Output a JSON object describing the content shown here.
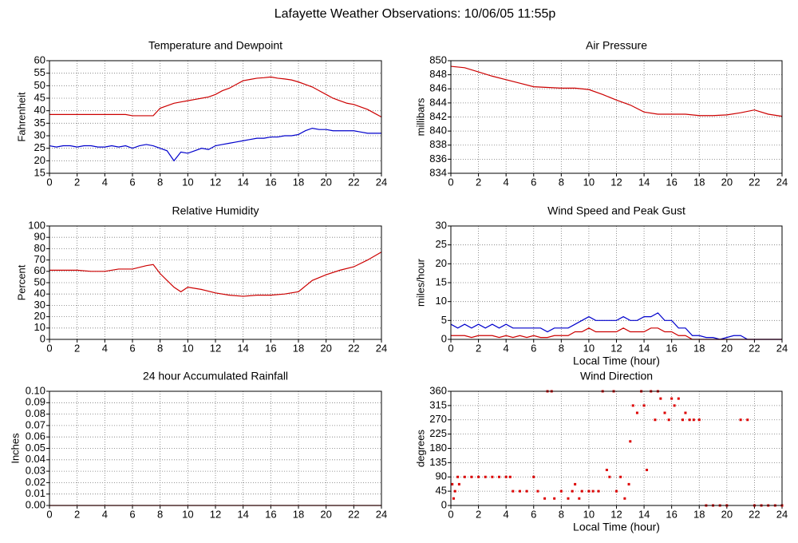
{
  "title": "Lafayette Weather Observations: 10/06/05 11:55p",
  "chart_data": [
    {
      "type": "line",
      "title": "Temperature and Dewpoint",
      "ylabel": "Fahrenheit",
      "x": [
        0,
        0.5,
        1,
        1.5,
        2,
        2.5,
        3,
        3.5,
        4,
        4.5,
        5,
        5.5,
        6,
        6.5,
        7,
        7.5,
        8,
        8.5,
        9,
        9.5,
        10,
        10.5,
        11,
        11.5,
        12,
        12.5,
        13,
        13.5,
        14,
        14.5,
        15,
        15.5,
        16,
        16.5,
        17,
        17.5,
        18,
        18.5,
        19,
        19.5,
        20,
        20.5,
        21,
        21.5,
        22,
        22.5,
        23,
        23.5,
        24
      ],
      "series": [
        {
          "color": "#cc0000",
          "values": [
            38.5,
            38.5,
            38.5,
            38.5,
            38.5,
            38.5,
            38.5,
            38.5,
            38.5,
            38.5,
            38.5,
            38.5,
            38,
            38,
            38,
            38,
            41,
            42,
            43,
            43.5,
            44,
            44.5,
            45,
            45.5,
            46.5,
            48,
            49,
            50.5,
            52,
            52.5,
            53,
            53.2,
            53.5,
            53,
            52.7,
            52.3,
            51.5,
            50.5,
            49.5,
            48,
            46.5,
            45,
            44,
            43,
            42.5,
            41.5,
            40.5,
            39,
            37.5
          ]
        },
        {
          "color": "#0000cc",
          "values": [
            26,
            25.5,
            26,
            26,
            25.5,
            26,
            26,
            25.5,
            25.5,
            26,
            25.5,
            26,
            25,
            26,
            26.5,
            26,
            25,
            24,
            20,
            23.5,
            23,
            24,
            25,
            24.5,
            26,
            26.5,
            27,
            27.5,
            28,
            28.5,
            29,
            29,
            29.5,
            29.5,
            30,
            30,
            30.5,
            32,
            33,
            32.5,
            32.5,
            32,
            32,
            32,
            32,
            31.5,
            31,
            31,
            31
          ]
        }
      ],
      "xlim": [
        0,
        24
      ],
      "xticks": [
        0,
        2,
        4,
        6,
        8,
        10,
        12,
        14,
        16,
        18,
        20,
        22,
        24
      ],
      "ylim": [
        15,
        60
      ],
      "yticks": [
        15,
        20,
        25,
        30,
        35,
        40,
        45,
        50,
        55,
        60
      ],
      "grid": true
    },
    {
      "type": "line",
      "title": "Air Pressure",
      "ylabel": "millibars",
      "x": [
        0,
        1,
        2,
        3,
        4,
        5,
        6,
        7,
        8,
        9,
        10,
        11,
        12,
        13,
        14,
        15,
        16,
        17,
        18,
        19,
        20,
        21,
        22,
        23,
        24
      ],
      "series": [
        {
          "color": "#cc0000",
          "values": [
            849.2,
            849,
            848.4,
            847.8,
            847.3,
            846.8,
            846.3,
            846.2,
            846.1,
            846.1,
            845.9,
            845.2,
            844.4,
            843.7,
            842.7,
            842.4,
            842.4,
            842.4,
            842.2,
            842.2,
            842.3,
            842.6,
            843,
            842.4,
            842.1
          ]
        }
      ],
      "xlim": [
        0,
        24
      ],
      "xticks": [
        0,
        2,
        4,
        6,
        8,
        10,
        12,
        14,
        16,
        18,
        20,
        22,
        24
      ],
      "ylim": [
        834,
        850
      ],
      "yticks": [
        834,
        836,
        838,
        840,
        842,
        844,
        846,
        848,
        850
      ],
      "grid": true
    },
    {
      "type": "line",
      "title": "Relative Humidity",
      "ylabel": "Percent",
      "x": [
        0,
        1,
        2,
        3,
        4,
        5,
        6,
        7,
        7.5,
        8,
        8.5,
        9,
        9.5,
        10,
        11,
        12,
        13,
        14,
        15,
        16,
        17,
        18,
        19,
        20,
        21,
        22,
        23,
        24
      ],
      "series": [
        {
          "color": "#cc0000",
          "values": [
            61,
            61,
            61,
            60,
            60,
            62,
            62,
            65,
            66,
            58,
            52,
            46,
            42,
            46,
            44,
            41,
            39,
            38,
            39,
            39,
            40,
            42,
            52,
            57,
            61,
            64,
            70,
            77
          ]
        }
      ],
      "xlim": [
        0,
        24
      ],
      "xticks": [
        0,
        2,
        4,
        6,
        8,
        10,
        12,
        14,
        16,
        18,
        20,
        22,
        24
      ],
      "ylim": [
        0,
        100
      ],
      "yticks": [
        0,
        10,
        20,
        30,
        40,
        50,
        60,
        70,
        80,
        90,
        100
      ],
      "grid": true
    },
    {
      "type": "line",
      "title": "Wind Speed and Peak Gust",
      "ylabel": "miles/hour",
      "xlabel": "Local Time (hour)",
      "x": [
        0,
        0.5,
        1,
        1.5,
        2,
        2.5,
        3,
        3.5,
        4,
        4.5,
        5,
        5.5,
        6,
        6.5,
        7,
        7.5,
        8,
        8.5,
        9,
        9.5,
        10,
        10.5,
        11,
        11.5,
        12,
        12.5,
        13,
        13.5,
        14,
        14.5,
        15,
        15.5,
        16,
        16.5,
        17,
        17.5,
        18,
        18.5,
        19,
        19.5,
        20,
        20.5,
        21,
        21.5,
        22,
        22.5,
        23,
        23.5,
        24
      ],
      "series": [
        {
          "color": "#0000cc",
          "values": [
            4,
            3,
            4,
            3,
            4,
            3,
            4,
            3,
            4,
            3,
            3,
            3,
            3,
            3,
            2,
            3,
            3,
            3,
            4,
            5,
            6,
            5,
            5,
            5,
            5,
            6,
            5,
            5,
            6,
            6,
            7,
            5,
            5,
            3,
            3,
            1,
            1,
            0.5,
            0.5,
            0,
            0.5,
            1,
            1,
            0,
            0,
            0,
            0,
            0,
            0
          ]
        },
        {
          "color": "#cc0000",
          "values": [
            1,
            1,
            1,
            0.5,
            1,
            1,
            1,
            0.5,
            1,
            0.5,
            1,
            0.5,
            1,
            0.5,
            0.5,
            1,
            1,
            1,
            2,
            2,
            3,
            2,
            2,
            2,
            2,
            3,
            2,
            2,
            2,
            3,
            3,
            2,
            2,
            1,
            1,
            0,
            0,
            0,
            0,
            0,
            0,
            0,
            0,
            0,
            0,
            0,
            0,
            0,
            0
          ]
        }
      ],
      "xlim": [
        0,
        24
      ],
      "xticks": [
        0,
        2,
        4,
        6,
        8,
        10,
        12,
        14,
        16,
        18,
        20,
        22,
        24
      ],
      "ylim": [
        0,
        30
      ],
      "yticks": [
        0,
        5,
        10,
        15,
        20,
        25,
        30
      ],
      "grid": true
    },
    {
      "type": "line",
      "title": "24 hour Accumulated Rainfall",
      "ylabel": "Inches",
      "x": [
        0,
        24
      ],
      "series": [
        {
          "color": "#cc0000",
          "values": [
            0,
            0
          ]
        }
      ],
      "xlim": [
        0,
        24
      ],
      "xticks": [
        0,
        2,
        4,
        6,
        8,
        10,
        12,
        14,
        16,
        18,
        20,
        22,
        24
      ],
      "ylim": [
        0,
        0.1
      ],
      "yticks": [
        {
          "value": 0,
          "label": "0.00"
        },
        {
          "value": 0.01,
          "label": "0.01"
        },
        {
          "value": 0.02,
          "label": "0.02"
        },
        {
          "value": 0.03,
          "label": "0.03"
        },
        {
          "value": 0.04,
          "label": "0.04"
        },
        {
          "value": 0.05,
          "label": "0.05"
        },
        {
          "value": 0.06,
          "label": "0.06"
        },
        {
          "value": 0.07,
          "label": "0.07"
        },
        {
          "value": 0.08,
          "label": "0.08"
        },
        {
          "value": 0.09,
          "label": "0.09"
        },
        {
          "value": 0.1,
          "label": "0.10"
        }
      ],
      "grid": true
    },
    {
      "type": "scatter",
      "title": "Wind Direction",
      "ylabel": "degrees",
      "xlabel": "Local Time (hour)",
      "x": [
        0.1,
        0.2,
        0.3,
        0.5,
        0.6,
        1,
        1.5,
        2,
        2.5,
        3,
        3.5,
        4,
        4.3,
        4.5,
        5,
        5.5,
        6,
        6.3,
        6.8,
        7,
        7.3,
        7.5,
        8,
        8.5,
        8.8,
        9,
        9.3,
        9.5,
        10,
        10.3,
        10.7,
        11,
        11.3,
        11.5,
        11.8,
        12,
        12.3,
        12.6,
        12.9,
        13,
        13.2,
        13.5,
        13.8,
        14,
        14.2,
        14.5,
        14.8,
        15,
        15.2,
        15.5,
        15.8,
        16,
        16.2,
        16.5,
        16.8,
        17,
        17.3,
        17.6,
        18,
        18.5,
        19,
        19.5,
        20,
        21,
        21.5,
        22,
        22.5,
        23,
        23.5,
        24
      ],
      "series": [
        {
          "color": "#dd0000",
          "values": [
            67,
            22,
            45,
            90,
            67,
            90,
            90,
            90,
            90,
            90,
            90,
            90,
            90,
            45,
            45,
            45,
            90,
            45,
            22,
            360,
            360,
            22,
            45,
            22,
            45,
            67,
            22,
            45,
            45,
            45,
            45,
            360,
            112,
            90,
            360,
            45,
            90,
            22,
            67,
            202,
            315,
            292,
            360,
            315,
            112,
            360,
            270,
            360,
            337,
            292,
            270,
            337,
            315,
            337,
            270,
            292,
            270,
            270,
            270,
            0,
            0,
            0,
            0,
            270,
            270,
            0,
            0,
            0,
            0,
            0
          ]
        }
      ],
      "xlim": [
        0,
        24
      ],
      "xticks": [
        0,
        2,
        4,
        6,
        8,
        10,
        12,
        14,
        16,
        18,
        20,
        22,
        24
      ],
      "ylim": [
        0,
        360
      ],
      "yticks": [
        0,
        45,
        90,
        135,
        180,
        225,
        270,
        315,
        360
      ],
      "grid": true
    }
  ]
}
